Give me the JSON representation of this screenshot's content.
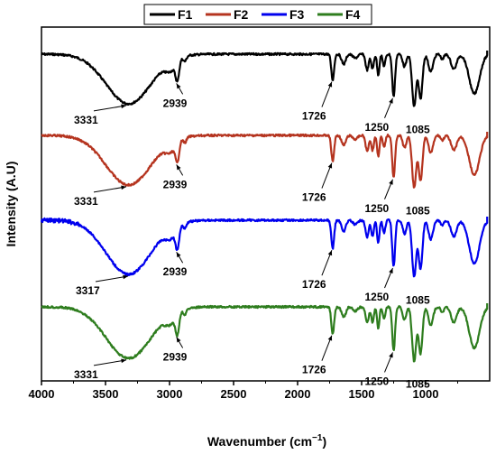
{
  "chart_data": {
    "type": "line",
    "xlabel": "Wavenumber (cm",
    "xlabel_superscript": "−1",
    "xlabel_suffix": ")",
    "ylabel": "Intensity (A.U)",
    "xlim": [
      4000,
      500
    ],
    "x_ticks": [
      4000,
      3500,
      3000,
      2500,
      2000,
      1500,
      1000
    ],
    "y_ticks_shown": false,
    "grid": false,
    "legend_placement": "top",
    "series": [
      {
        "name": "F1",
        "color": "#000000",
        "peaks": [
          {
            "label": "3331",
            "x": 3331
          },
          {
            "label": "2939",
            "x": 2939
          },
          {
            "label": "1726",
            "x": 1726
          },
          {
            "label": "1250",
            "x": 1250
          },
          {
            "label": "1085",
            "x": 1085
          }
        ]
      },
      {
        "name": "F2",
        "color": "#b5341f",
        "peaks": [
          {
            "label": "3331",
            "x": 3331
          },
          {
            "label": "2939",
            "x": 2939
          },
          {
            "label": "1726",
            "x": 1726
          },
          {
            "label": "1250",
            "x": 1250
          },
          {
            "label": "1085",
            "x": 1085
          }
        ]
      },
      {
        "name": "F3",
        "color": "#0000ee",
        "peaks": [
          {
            "label": "3317",
            "x": 3317
          },
          {
            "label": "2939",
            "x": 2939
          },
          {
            "label": "1726",
            "x": 1726
          },
          {
            "label": "1250",
            "x": 1250
          },
          {
            "label": "1085",
            "x": 1085
          }
        ]
      },
      {
        "name": "F4",
        "color": "#2e7d1e",
        "peaks": [
          {
            "label": "3331",
            "x": 3331
          },
          {
            "label": "2939",
            "x": 2939
          },
          {
            "label": "1726",
            "x": 1726
          },
          {
            "label": "1250",
            "x": 1250
          },
          {
            "label": "1085",
            "x": 1085
          }
        ]
      }
    ]
  }
}
